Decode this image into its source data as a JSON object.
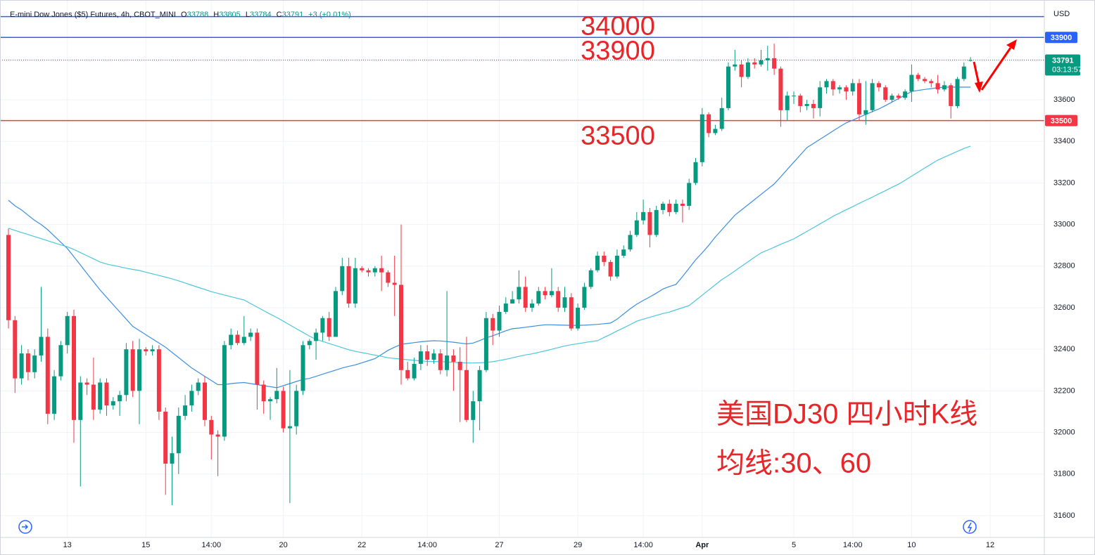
{
  "header": {
    "title": "E-mini Dow Jones ($5) Futures, 4h, CBOT_MINI",
    "ohlc_labels": [
      "O",
      "H",
      "L",
      "C"
    ],
    "change": "+3 (+0.01%)"
  },
  "chart_data": {
    "type": "candlestick",
    "categories": [
      null,
      null,
      null,
      null,
      null,
      null,
      null,
      null,
      null,
      "13",
      null,
      null,
      null,
      null,
      null,
      null,
      null,
      null,
      null,
      null,
      null,
      "15",
      null,
      null,
      null,
      null,
      null,
      null,
      null,
      null,
      null,
      "14:00",
      null,
      null,
      null,
      null,
      null,
      null,
      null,
      null,
      null,
      null,
      "20",
      null,
      null,
      null,
      null,
      null,
      null,
      null,
      null,
      null,
      null,
      null,
      "22",
      null,
      null,
      null,
      null,
      null,
      null,
      null,
      null,
      null,
      "14:00",
      null,
      null,
      null,
      null,
      null,
      null,
      null,
      null,
      null,
      null,
      "27",
      null,
      null,
      null,
      null,
      null,
      null,
      null,
      null,
      null,
      null,
      null,
      "29",
      null,
      null,
      null,
      null,
      null,
      null,
      null,
      null,
      null,
      "14:00",
      null,
      null,
      null,
      null,
      null,
      null,
      null,
      null,
      "Apr",
      null,
      null,
      null,
      null,
      null,
      null,
      null,
      null,
      null,
      null,
      null,
      null,
      null,
      "5",
      null,
      null,
      null,
      null,
      null,
      null,
      null,
      null,
      "14:00",
      null,
      null,
      null,
      null,
      null,
      null,
      null,
      null,
      "10",
      null,
      null,
      null,
      null,
      null,
      null,
      null,
      null,
      null,
      null,
      null,
      "12",
      null
    ],
    "open": [
      32950,
      32540,
      32260,
      32380,
      32290,
      32370,
      32460,
      32090,
      32270,
      32420,
      32560,
      32060,
      32240,
      32230,
      32110,
      32240,
      32130,
      32150,
      32180,
      32400,
      32200,
      32400,
      32390,
      32400,
      32100,
      31850,
      31900,
      32080,
      32130,
      32200,
      32240,
      32060,
      31990,
      31980,
      32420,
      32470,
      32430,
      32460,
      32480,
      32230,
      32150,
      32160,
      32200,
      32020,
      32030,
      32200,
      32420,
      32440,
      32480,
      32550,
      32460,
      32680,
      32800,
      32620,
      32790,
      32780,
      32770,
      32790,
      32770,
      32720,
      32710,
      32300,
      32260,
      32330,
      32390,
      32350,
      32380,
      32300,
      32370,
      32340,
      32300,
      32060,
      32150,
      32300,
      32550,
      32490,
      32580,
      32620,
      32640,
      32700,
      32600,
      32620,
      32680,
      32660,
      32680,
      32600,
      32650,
      32500,
      32600,
      32700,
      32780,
      32850,
      32820,
      32750,
      32850,
      32880,
      32950,
      33020,
      33060,
      32950,
      33070,
      33100,
      33060,
      33100,
      33090,
      33200,
      33300,
      33530,
      33440,
      33460,
      33560,
      33760,
      33770,
      33710,
      33780,
      33770,
      33790,
      33800,
      33750,
      33550,
      33620,
      33620,
      33570,
      33580,
      33560,
      33660,
      33690,
      33650,
      33660,
      33640,
      33680,
      33530,
      33550,
      33680,
      33660,
      33600,
      33620,
      33610,
      33640,
      33720,
      33700,
      33690,
      33680,
      33650,
      33670,
      33570,
      33700,
      33788,
      null,
      null,
      null,
      null
    ],
    "high": [
      32980,
      32560,
      32420,
      32400,
      32400,
      32700,
      32500,
      32300,
      32440,
      32580,
      32590,
      32270,
      32260,
      32360,
      32260,
      32260,
      32170,
      32200,
      32430,
      32440,
      32450,
      32410,
      32420,
      32420,
      32120,
      31980,
      32120,
      32180,
      32230,
      32260,
      32270,
      32080,
      32010,
      32440,
      32500,
      32490,
      32560,
      32500,
      32500,
      32250,
      32170,
      32310,
      32220,
      32300,
      32230,
      32440,
      32450,
      32500,
      32560,
      32580,
      32700,
      32840,
      32840,
      32840,
      32800,
      32790,
      32800,
      32850,
      32780,
      32850,
      33000,
      32340,
      32360,
      32420,
      32420,
      32400,
      32400,
      32680,
      32400,
      32410,
      32460,
      32200,
      32320,
      32580,
      32570,
      32610,
      32650,
      32680,
      32780,
      32750,
      32640,
      32700,
      32700,
      32790,
      32700,
      32700,
      32670,
      32620,
      32720,
      32790,
      32870,
      32870,
      32830,
      32880,
      32900,
      32970,
      33060,
      33120,
      33080,
      33090,
      33110,
      33120,
      33120,
      33120,
      33220,
      33320,
      33560,
      33540,
      33480,
      33610,
      33780,
      33840,
      33790,
      33800,
      33800,
      33840,
      33860,
      33870,
      33760,
      33640,
      33640,
      33630,
      33600,
      33600,
      33690,
      33700,
      33700,
      33670,
      33670,
      33700,
      33700,
      33690,
      33700,
      33690,
      33670,
      33630,
      33630,
      33650,
      33770,
      33730,
      33710,
      33700,
      33720,
      33690,
      33680,
      33710,
      33780,
      33805,
      null,
      null,
      null,
      null
    ],
    "low": [
      32500,
      32190,
      32230,
      32250,
      32260,
      32340,
      32040,
      32060,
      32250,
      32380,
      31950,
      31740,
      32180,
      32060,
      32090,
      32080,
      32110,
      32080,
      32150,
      32170,
      32040,
      32370,
      32370,
      32060,
      31700,
      31650,
      31800,
      32060,
      32100,
      32180,
      32030,
      31870,
      31790,
      31960,
      32400,
      32420,
      32420,
      32440,
      32110,
      32090,
      32060,
      32140,
      32000,
      31660,
      31990,
      32180,
      32400,
      32350,
      32440,
      32440,
      32460,
      32660,
      32600,
      32600,
      32770,
      32750,
      32750,
      32680,
      32700,
      32560,
      32230,
      32250,
      32250,
      32300,
      32320,
      32330,
      32280,
      32270,
      32200,
      32050,
      32050,
      31950,
      32010,
      32290,
      32420,
      32460,
      32570,
      32620,
      32620,
      32580,
      32580,
      32610,
      32640,
      32650,
      32580,
      32580,
      32490,
      32490,
      32590,
      32690,
      32770,
      32800,
      32730,
      32740,
      32840,
      32870,
      32940,
      33000,
      32890,
      32940,
      33050,
      33040,
      33050,
      33010,
      33070,
      33190,
      33280,
      33420,
      33430,
      33450,
      33550,
      33740,
      33660,
      33700,
      33750,
      33760,
      33740,
      33720,
      33470,
      33500,
      33580,
      33540,
      33550,
      33510,
      33520,
      33630,
      33620,
      33630,
      33600,
      33620,
      33500,
      33480,
      33540,
      33640,
      33590,
      33590,
      33600,
      33600,
      33590,
      33690,
      33680,
      33660,
      33630,
      33640,
      33510,
      33560,
      33690,
      33784,
      null,
      null,
      null,
      null
    ],
    "close": [
      32540,
      32260,
      32380,
      32290,
      32370,
      32460,
      32090,
      32270,
      32420,
      32560,
      32060,
      32240,
      32230,
      32110,
      32240,
      32130,
      32150,
      32180,
      32400,
      32200,
      32400,
      32390,
      32400,
      32100,
      31850,
      31900,
      32080,
      32130,
      32200,
      32240,
      32060,
      31990,
      31980,
      32420,
      32470,
      32430,
      32460,
      32480,
      32230,
      32150,
      32160,
      32200,
      32020,
      32030,
      32200,
      32420,
      32440,
      32480,
      32550,
      32460,
      32680,
      32800,
      32620,
      32790,
      32780,
      32770,
      32790,
      32770,
      32720,
      32710,
      32300,
      32260,
      32330,
      32390,
      32350,
      32380,
      32300,
      32370,
      32340,
      32300,
      32060,
      32150,
      32300,
      32550,
      32490,
      32580,
      32620,
      32640,
      32700,
      32600,
      32620,
      32680,
      32660,
      32680,
      32600,
      32650,
      32500,
      32600,
      32700,
      32780,
      32850,
      32820,
      32750,
      32850,
      32880,
      32950,
      33020,
      33060,
      32950,
      33070,
      33100,
      33060,
      33100,
      33090,
      33200,
      33300,
      33530,
      33440,
      33460,
      33560,
      33760,
      33770,
      33710,
      33780,
      33770,
      33790,
      33800,
      33750,
      33550,
      33620,
      33620,
      33570,
      33580,
      33560,
      33660,
      33690,
      33650,
      33660,
      33640,
      33680,
      33530,
      33550,
      33680,
      33660,
      33600,
      33620,
      33610,
      33640,
      33720,
      33700,
      33690,
      33680,
      33650,
      33670,
      33570,
      33700,
      33760,
      33791,
      null,
      null,
      null,
      null
    ],
    "up_color": "#089981",
    "down_color": "#f23645",
    "moving_averages": [
      {
        "color": "#3d8ee0",
        "values": [
          33117,
          33090,
          33070,
          33045,
          33020,
          33000,
          32975,
          32945,
          32915,
          32885,
          32845,
          32805,
          32765,
          32725,
          32685,
          32650,
          32615,
          32580,
          32545,
          32510,
          32490,
          32470,
          32450,
          32430,
          32410,
          32385,
          32360,
          32335,
          32310,
          32290,
          32270,
          32250,
          32230,
          32230,
          32235,
          32238,
          32240,
          32235,
          32230,
          32225,
          32220,
          32215,
          32225,
          32235,
          32245,
          32255,
          32260,
          32270,
          32280,
          32290,
          32300,
          32310,
          32318,
          32325,
          32335,
          32345,
          32355,
          32375,
          32395,
          32410,
          32424,
          32428,
          32432,
          32436,
          32439,
          32441,
          32440,
          32437,
          32434,
          32430,
          32426,
          32430,
          32442,
          32455,
          32465,
          32477,
          32489,
          32499,
          32502,
          32506,
          32510,
          32514,
          32518,
          32518,
          32517,
          32516,
          32515,
          32515,
          32516,
          32518,
          32520,
          32523,
          32526,
          32545,
          32570,
          32595,
          32617,
          32635,
          32652,
          32670,
          32690,
          32702,
          32712,
          32750,
          32790,
          32830,
          32864,
          32900,
          32940,
          32975,
          33010,
          33045,
          33070,
          33095,
          33120,
          33145,
          33170,
          33195,
          33230,
          33265,
          33300,
          33335,
          33370,
          33390,
          33410,
          33430,
          33450,
          33470,
          33489,
          33502,
          33516,
          33530,
          33543,
          33556,
          33572,
          33589,
          33606,
          33623,
          33640,
          33645,
          33650,
          33654,
          33658,
          33661,
          33661,
          33661,
          33661,
          33661,
          null,
          null,
          null,
          null
        ]
      },
      {
        "color": "#4cc6dc",
        "values": [
          32982,
          32972,
          32962,
          32952,
          32942,
          32932,
          32922,
          32912,
          32902,
          32893,
          32880,
          32865,
          32850,
          32835,
          32820,
          32810,
          32803,
          32797,
          32790,
          32784,
          32779,
          32771,
          32763,
          32755,
          32747,
          32739,
          32729,
          32719,
          32708,
          32698,
          32688,
          32677,
          32669,
          32661,
          32653,
          32645,
          32637,
          32620,
          32603,
          32586,
          32569,
          32553,
          32535,
          32517,
          32499,
          32481,
          32463,
          32448,
          32438,
          32428,
          32418,
          32408,
          32398,
          32390,
          32384,
          32378,
          32372,
          32366,
          32359,
          32356,
          32353,
          32350,
          32347,
          32344,
          32342,
          32341,
          32340,
          32339,
          32337,
          32335,
          32334,
          32334,
          32335,
          32337,
          32340,
          32346,
          32352,
          32359,
          32366,
          32373,
          32378,
          32385,
          32392,
          32400,
          32408,
          32416,
          32422,
          32427,
          32432,
          32437,
          32441,
          32457,
          32472,
          32488,
          32503,
          32519,
          32535,
          32545,
          32554,
          32563,
          32572,
          32579,
          32590,
          32600,
          32610,
          32635,
          32660,
          32685,
          32710,
          32735,
          32755,
          32777,
          32799,
          32821,
          32843,
          32864,
          32877,
          32891,
          32905,
          32918,
          32931,
          32949,
          32967,
          32985,
          33003,
          33021,
          33040,
          33055,
          33071,
          33086,
          33102,
          33117,
          33132,
          33148,
          33163,
          33179,
          33194,
          33213,
          33233,
          33252,
          33272,
          33291,
          33310,
          33324,
          33338,
          33352,
          33366,
          33377,
          null,
          null,
          null,
          null
        ]
      }
    ],
    "hlines": [
      {
        "value": 34000,
        "color": "#2962ff"
      },
      {
        "value": 33900,
        "color": "#2962ff"
      },
      {
        "value": 33500,
        "color": "#f23645"
      }
    ],
    "hline_label_color": "#e8262a",
    "ylim": [
      31495,
      34053
    ],
    "yticks": [
      31600,
      31800,
      32000,
      32200,
      32400,
      32600,
      32800,
      33000,
      33200,
      33400,
      33600
    ],
    "grid": true,
    "currency": "USD",
    "countdown": "03:13:57",
    "annotations": [
      "美国DJ30 四小时K线",
      "均线:30、60"
    ]
  }
}
